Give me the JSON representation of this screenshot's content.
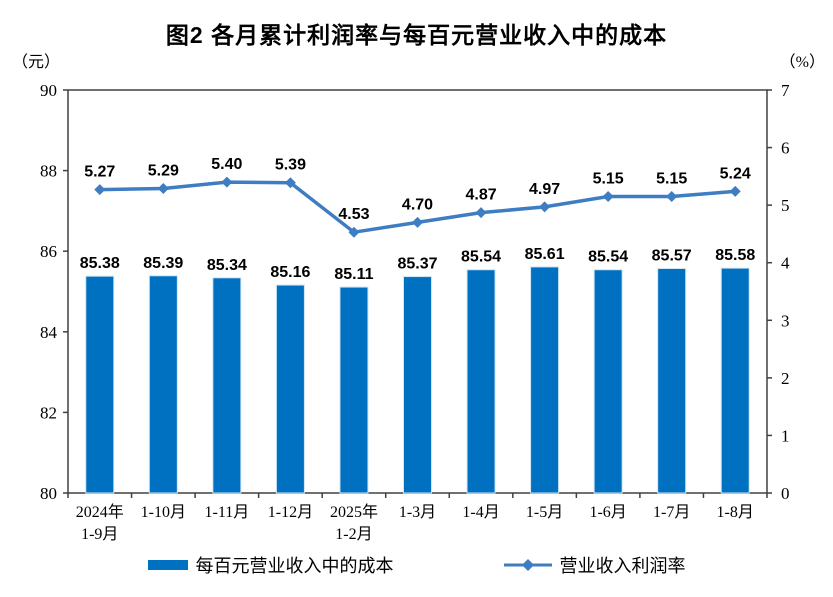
{
  "title": "图2  各月累计利润率与每百元营业收入中的成本",
  "left_axis_unit": "（元）",
  "right_axis_unit": "（%）",
  "legend": {
    "bar_label": "每百元营业收入中的成本",
    "line_label": "营业收入利润率"
  },
  "colors": {
    "bar": "#0070C0",
    "bar_edge": "#CFE4F5",
    "line": "#3F7DC3",
    "axis": "#404040",
    "text": "#000000"
  },
  "chart_data": {
    "type": "bar",
    "subtype": "combo-bar-line-dual-axis",
    "title": "图2  各月累计利润率与每百元营业收入中的成本",
    "categories": [
      "2024年\n1-9月",
      "1-10月",
      "1-11月",
      "1-12月",
      "2025年\n1-2月",
      "1-3月",
      "1-4月",
      "1-5月",
      "1-6月",
      "1-7月",
      "1-8月"
    ],
    "series": [
      {
        "name": "每百元营业收入中的成本",
        "type": "bar",
        "axis": "left",
        "values": [
          85.38,
          85.39,
          85.34,
          85.16,
          85.11,
          85.37,
          85.54,
          85.61,
          85.54,
          85.57,
          85.58
        ]
      },
      {
        "name": "营业收入利润率",
        "type": "line",
        "axis": "right",
        "values": [
          5.27,
          5.29,
          5.4,
          5.39,
          4.53,
          4.7,
          4.87,
          4.97,
          5.15,
          5.15,
          5.24
        ]
      }
    ],
    "left_axis": {
      "unit": "（元）",
      "min": 80,
      "max": 90,
      "step": 2
    },
    "right_axis": {
      "unit": "（%）",
      "min": 0,
      "max": 7,
      "step": 1
    },
    "grid": false,
    "data_labels": true,
    "legend_position": "bottom"
  }
}
